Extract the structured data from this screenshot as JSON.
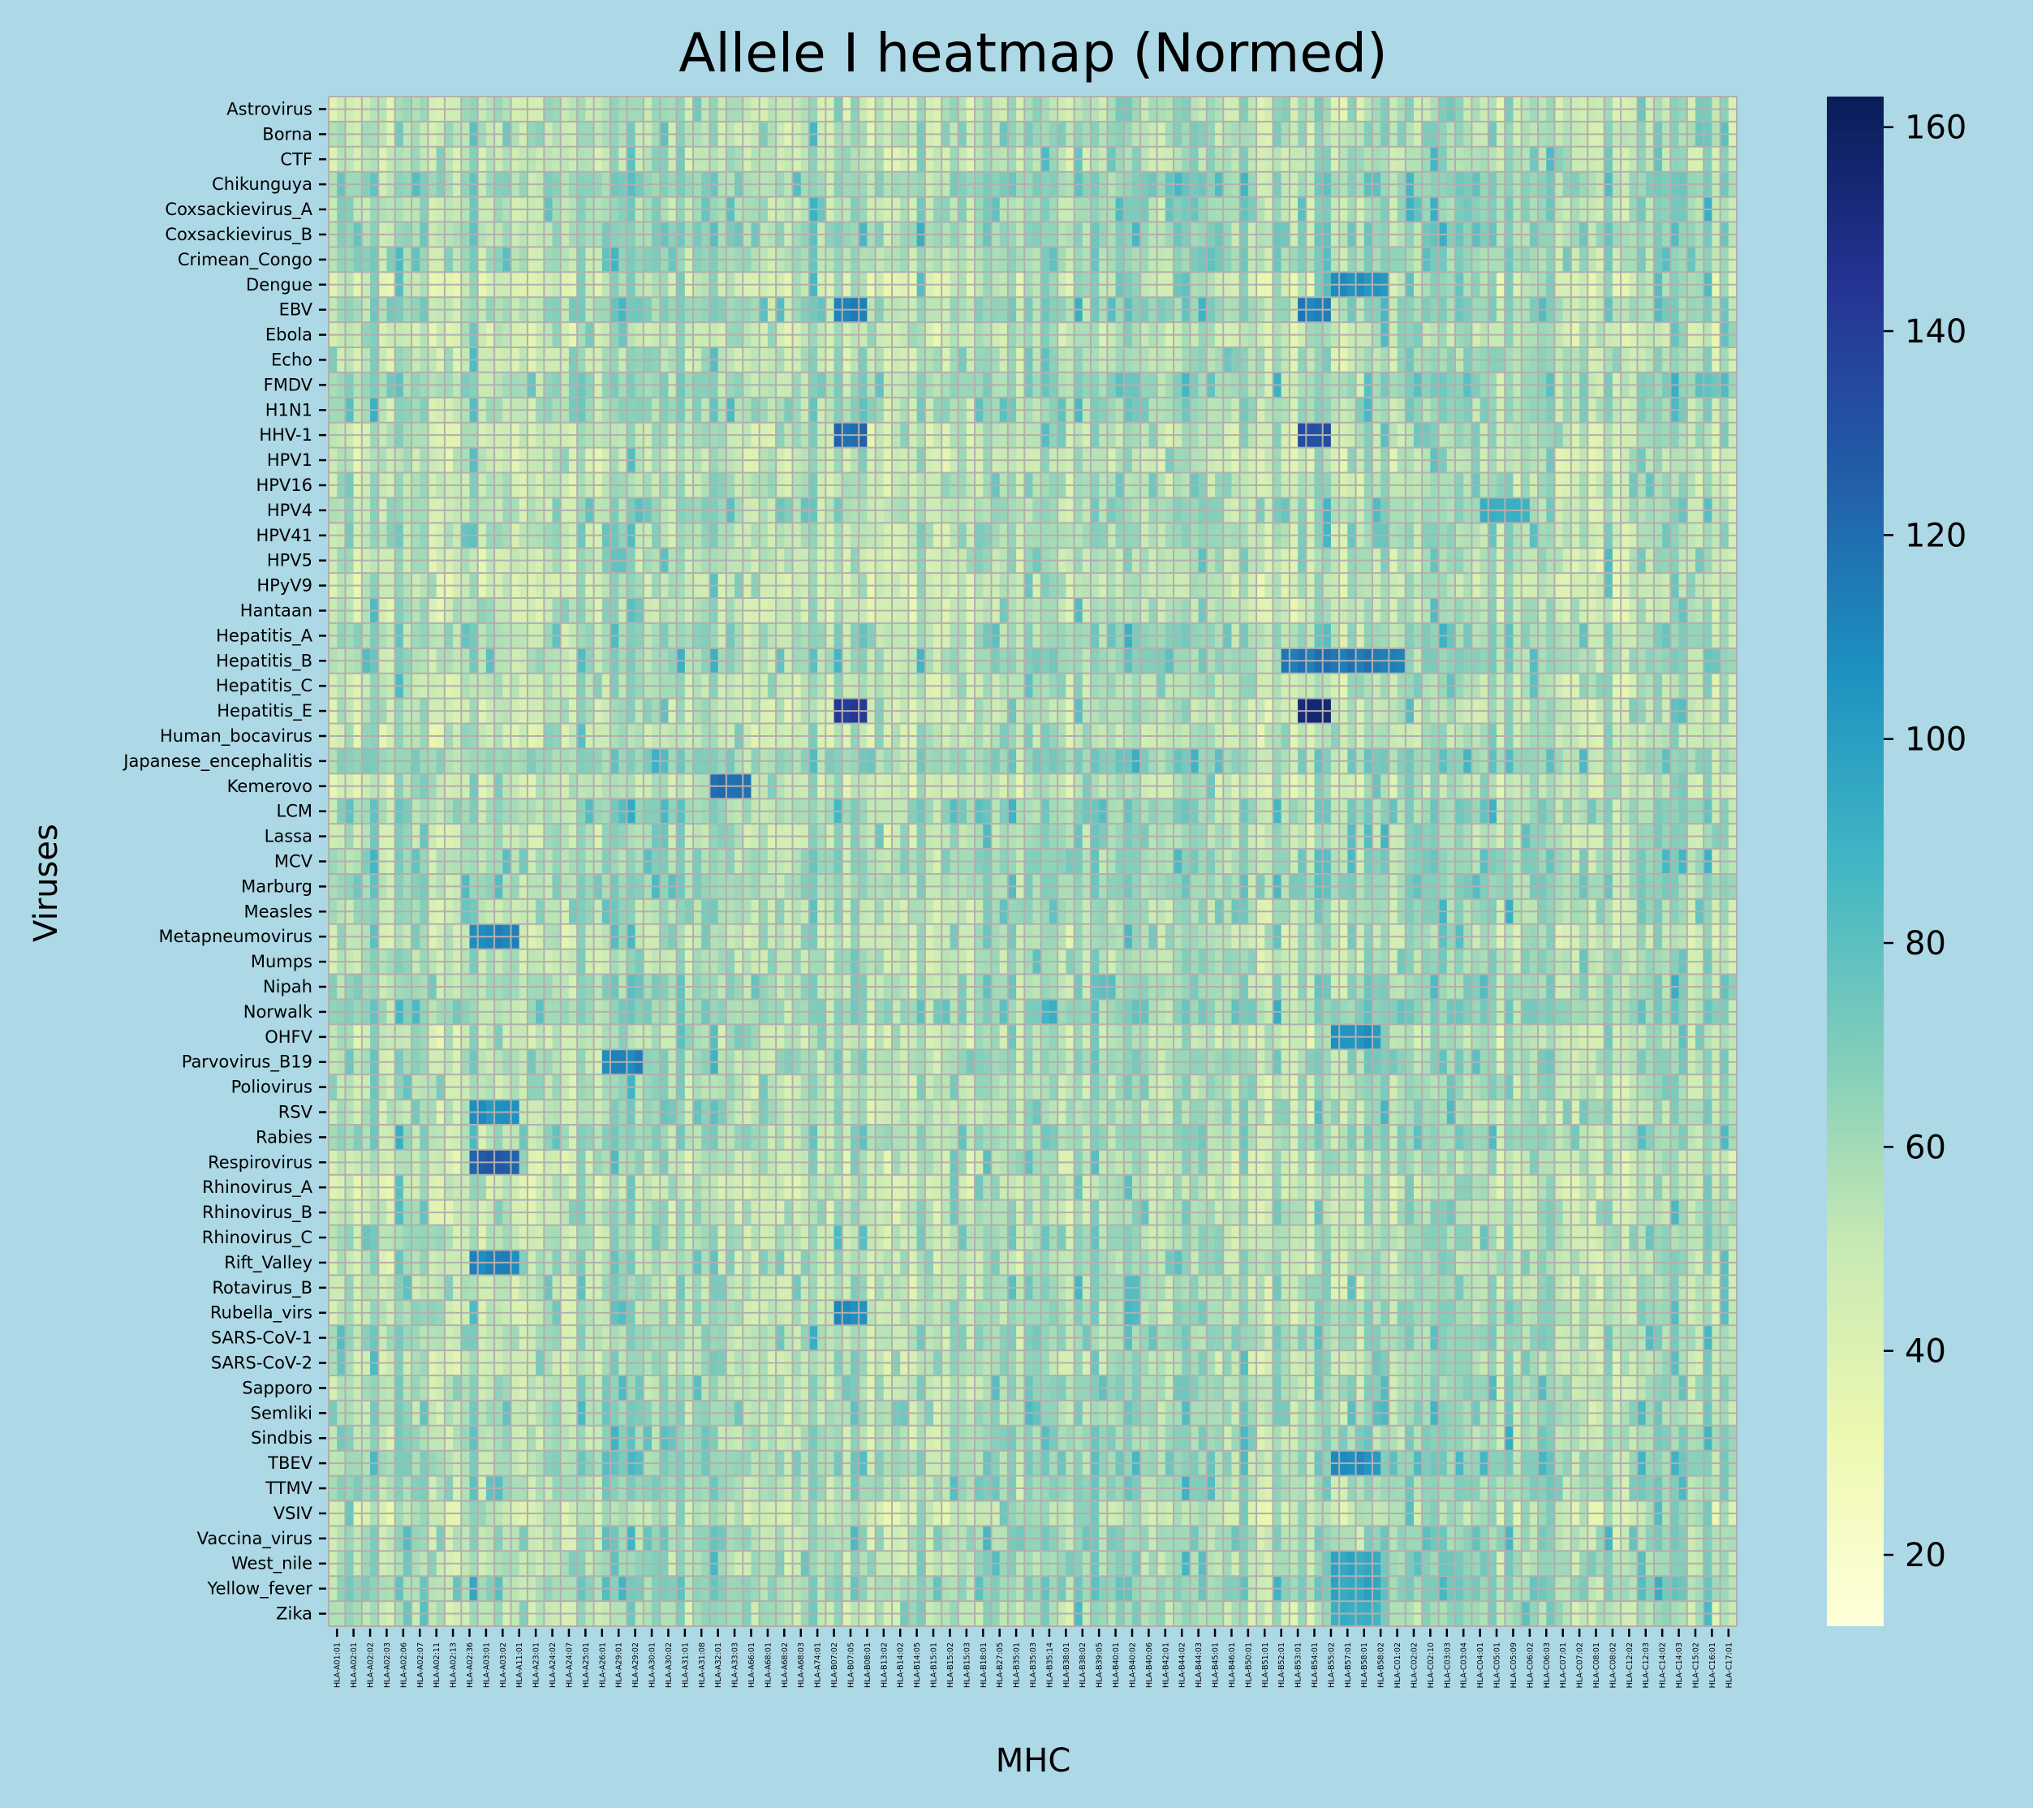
{
  "chart_data": {
    "type": "heatmap",
    "title": "Allele I heatmap (Normed)",
    "xlabel": "MHC",
    "ylabel": "Viruses",
    "rows": [
      "Astrovirus",
      "Borna",
      "CTF",
      "Chikunguya",
      "Coxsackievirus_A",
      "Coxsackievirus_B",
      "Crimean_Congo",
      "Dengue",
      "EBV",
      "Ebola",
      "Echo",
      "FMDV",
      "H1N1",
      "HHV-1",
      "HPV1",
      "HPV16",
      "HPV4",
      "HPV41",
      "HPV5",
      "HPyV9",
      "Hantaan",
      "Hepatitis_A",
      "Hepatitis_B",
      "Hepatitis_C",
      "Hepatitis_E",
      "Human_bocavirus",
      "Japanese_encephalitis",
      "Kemerovo",
      "LCM",
      "Lassa",
      "MCV",
      "Marburg",
      "Measles",
      "Metapneumovirus",
      "Mumps",
      "Nipah",
      "Norwalk",
      "OHFV",
      "Parvovirus_B19",
      "Poliovirus",
      "RSV",
      "Rabies",
      "Respirovirus",
      "Rhinovirus_A",
      "Rhinovirus_B",
      "Rhinovirus_C",
      "Rift_Valley",
      "Rotavirus_B",
      "Rubella_virs",
      "SARS-CoV-1",
      "SARS-CoV-2",
      "Sapporo",
      "Semliki",
      "Sindbis",
      "TBEV",
      "TTMV",
      "VSIV",
      "Vaccina_virus",
      "West_nile",
      "Yellow_fever",
      "Zika"
    ],
    "xtick_labels": [
      "HLA-A01:01",
      "HLA-A02:01",
      "HLA-A02:02",
      "HLA-A02:03",
      "HLA-A02:06",
      "HLA-A02:07",
      "HLA-A02:11",
      "HLA-A02:13",
      "HLA-A02:36",
      "HLA-A03:01",
      "HLA-A03:02",
      "HLA-A11:01",
      "HLA-A23:01",
      "HLA-A24:02",
      "HLA-A24:07",
      "HLA-A25:01",
      "HLA-A26:01",
      "HLA-A29:01",
      "HLA-A29:02",
      "HLA-A30:01",
      "HLA-A30:02",
      "HLA-A31:01",
      "HLA-A31:08",
      "HLA-A32:01",
      "HLA-A33:03",
      "HLA-A66:01",
      "HLA-A68:01",
      "HLA-A68:02",
      "HLA-A68:03",
      "HLA-A74:01",
      "HLA-B07:02",
      "HLA-B07:05",
      "HLA-B08:01",
      "HLA-B13:02",
      "HLA-B14:02",
      "HLA-B14:05",
      "HLA-B15:01",
      "HLA-B15:02",
      "HLA-B15:03",
      "HLA-B18:01",
      "HLA-B27:05",
      "HLA-B35:01",
      "HLA-B35:03",
      "HLA-B35:14",
      "HLA-B38:01",
      "HLA-B38:02",
      "HLA-B39:05",
      "HLA-B40:01",
      "HLA-B40:02",
      "HLA-B40:06",
      "HLA-B42:01",
      "HLA-B44:02",
      "HLA-B44:03",
      "HLA-B45:01",
      "HLA-B46:01",
      "HLA-B50:01",
      "HLA-B51:01",
      "HLA-B52:01",
      "HLA-B53:01",
      "HLA-B54:01",
      "HLA-B55:02",
      "HLA-B57:01",
      "HLA-B58:01",
      "HLA-B58:02",
      "HLA-C01:02",
      "HLA-C02:02",
      "HLA-C02:10",
      "HLA-C03:03",
      "HLA-C03:04",
      "HLA-C04:01",
      "HLA-C05:01",
      "HLA-C05:09",
      "HLA-C06:02",
      "HLA-C06:03",
      "HLA-C07:01",
      "HLA-C07:02",
      "HLA-C08:01",
      "HLA-C08:02",
      "HLA-C12:02",
      "HLA-C12:03",
      "HLA-C14:02",
      "HLA-C14:03",
      "HLA-C15:02",
      "HLA-C16:01",
      "HLA-C17:01"
    ],
    "ncols": 170,
    "colorbar": {
      "vmin": 13,
      "vmax": 163,
      "ticks": [
        20,
        40,
        60,
        80,
        100,
        120,
        140,
        160
      ],
      "colormap": [
        "#ffffd9",
        "#edf8b1",
        "#c7e9b4",
        "#7fcdbb",
        "#41b6c4",
        "#1d91c0",
        "#225ea8",
        "#253494",
        "#081d58"
      ]
    },
    "grid_color": "#b0b0b0",
    "notes_hotspots": [
      {
        "row": "Dengue",
        "from_col": 121,
        "to_col": 127,
        "value": 110
      },
      {
        "row": "EBV",
        "from_col": 61,
        "to_col": 64,
        "value": 118
      },
      {
        "row": "EBV",
        "from_col": 117,
        "to_col": 120,
        "value": 118
      },
      {
        "row": "HHV-1",
        "from_col": 61,
        "to_col": 64,
        "value": 125
      },
      {
        "row": "HHV-1",
        "from_col": 117,
        "to_col": 120,
        "value": 138
      },
      {
        "row": "HPV4",
        "from_col": 139,
        "to_col": 144,
        "value": 95
      },
      {
        "row": "Hepatitis_B",
        "from_col": 115,
        "to_col": 129,
        "value": 120
      },
      {
        "row": "Hepatitis_E",
        "from_col": 61,
        "to_col": 64,
        "value": 145
      },
      {
        "row": "Hepatitis_E",
        "from_col": 117,
        "to_col": 120,
        "value": 160
      },
      {
        "row": "Kemerovo",
        "from_col": 46,
        "to_col": 50,
        "value": 125
      },
      {
        "row": "Metapneumovirus",
        "from_col": 17,
        "to_col": 22,
        "value": 115
      },
      {
        "row": "OHFV",
        "from_col": 121,
        "to_col": 126,
        "value": 110
      },
      {
        "row": "Parvovirus_B19",
        "from_col": 33,
        "to_col": 37,
        "value": 115
      },
      {
        "row": "RSV",
        "from_col": 17,
        "to_col": 22,
        "value": 110
      },
      {
        "row": "Respirovirus",
        "from_col": 17,
        "to_col": 22,
        "value": 130
      },
      {
        "row": "Rift_Valley",
        "from_col": 17,
        "to_col": 22,
        "value": 115
      },
      {
        "row": "Rubella_virs",
        "from_col": 61,
        "to_col": 64,
        "value": 112
      },
      {
        "row": "TBEV",
        "from_col": 121,
        "to_col": 126,
        "value": 110
      },
      {
        "row": "West_nile",
        "from_col": 121,
        "to_col": 126,
        "value": 100
      },
      {
        "row": "Yellow_fever",
        "from_col": 121,
        "to_col": 126,
        "value": 100
      },
      {
        "row": "Zika",
        "from_col": 121,
        "to_col": 126,
        "value": 95
      }
    ]
  }
}
